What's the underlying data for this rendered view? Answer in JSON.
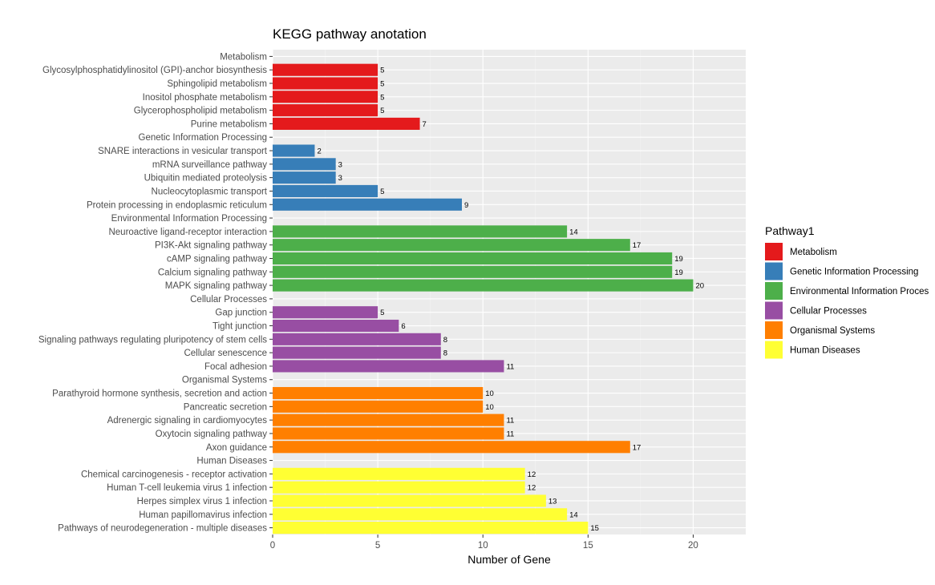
{
  "chart_data": {
    "type": "bar",
    "orientation": "horizontal",
    "title": "KEGG pathway anotation",
    "xlabel": "Number of Gene",
    "ylabel": "",
    "xlim": [
      0,
      22.5
    ],
    "x_ticks": [
      0,
      5,
      10,
      15,
      20
    ],
    "legend": {
      "title": "Pathway1",
      "placement": "right",
      "entries": [
        {
          "name": "Metabolism",
          "color": "#e41a1c"
        },
        {
          "name": "Genetic Information Processing",
          "color": "#377eb8"
        },
        {
          "name": "Environmental Information Proces",
          "color": "#4daf4a"
        },
        {
          "name": "Cellular Processes",
          "color": "#984ea3"
        },
        {
          "name": "Organismal Systems",
          "color": "#ff7f00"
        },
        {
          "name": "Human Diseases",
          "color": "#ffff33"
        }
      ]
    },
    "rows": [
      {
        "label": "Metabolism",
        "value": null,
        "group": 0
      },
      {
        "label": "Glycosylphosphatidylinositol (GPI)-anchor biosynthesis",
        "value": 5,
        "group": 0
      },
      {
        "label": "Sphingolipid metabolism",
        "value": 5,
        "group": 0
      },
      {
        "label": "Inositol phosphate metabolism",
        "value": 5,
        "group": 0
      },
      {
        "label": "Glycerophospholipid metabolism",
        "value": 5,
        "group": 0
      },
      {
        "label": "Purine metabolism",
        "value": 7,
        "group": 0
      },
      {
        "label": "Genetic Information Processing",
        "value": null,
        "group": 1
      },
      {
        "label": "SNARE interactions in vesicular transport",
        "value": 2,
        "group": 1
      },
      {
        "label": "mRNA surveillance pathway",
        "value": 3,
        "group": 1
      },
      {
        "label": "Ubiquitin mediated proteolysis",
        "value": 3,
        "group": 1
      },
      {
        "label": "Nucleocytoplasmic transport",
        "value": 5,
        "group": 1
      },
      {
        "label": "Protein processing in endoplasmic reticulum",
        "value": 9,
        "group": 1
      },
      {
        "label": "Environmental Information Processing",
        "value": null,
        "group": 2
      },
      {
        "label": "Neuroactive ligand-receptor interaction",
        "value": 14,
        "group": 2
      },
      {
        "label": "PI3K-Akt signaling pathway",
        "value": 17,
        "group": 2
      },
      {
        "label": "cAMP signaling pathway",
        "value": 19,
        "group": 2
      },
      {
        "label": "Calcium signaling pathway",
        "value": 19,
        "group": 2
      },
      {
        "label": "MAPK signaling pathway",
        "value": 20,
        "group": 2
      },
      {
        "label": "Cellular Processes",
        "value": null,
        "group": 3
      },
      {
        "label": "Gap junction",
        "value": 5,
        "group": 3
      },
      {
        "label": "Tight junction",
        "value": 6,
        "group": 3
      },
      {
        "label": "Signaling pathways regulating pluripotency of stem cells",
        "value": 8,
        "group": 3
      },
      {
        "label": "Cellular senescence",
        "value": 8,
        "group": 3
      },
      {
        "label": "Focal adhesion",
        "value": 11,
        "group": 3
      },
      {
        "label": "Organismal Systems",
        "value": null,
        "group": 4
      },
      {
        "label": "Parathyroid hormone synthesis, secretion and action",
        "value": 10,
        "group": 4
      },
      {
        "label": "Pancreatic secretion",
        "value": 10,
        "group": 4
      },
      {
        "label": "Adrenergic signaling in cardiomyocytes",
        "value": 11,
        "group": 4
      },
      {
        "label": "Oxytocin signaling pathway",
        "value": 11,
        "group": 4
      },
      {
        "label": "Axon guidance",
        "value": 17,
        "group": 4
      },
      {
        "label": "Human Diseases",
        "value": null,
        "group": 5
      },
      {
        "label": "Chemical carcinogenesis - receptor activation",
        "value": 12,
        "group": 5
      },
      {
        "label": "Human T-cell leukemia virus 1 infection",
        "value": 12,
        "group": 5
      },
      {
        "label": "Herpes simplex virus 1 infection",
        "value": 13,
        "group": 5
      },
      {
        "label": "Human papillomavirus infection",
        "value": 14,
        "group": 5
      },
      {
        "label": "Pathways of neurodegeneration - multiple diseases",
        "value": 15,
        "group": 5
      }
    ]
  }
}
